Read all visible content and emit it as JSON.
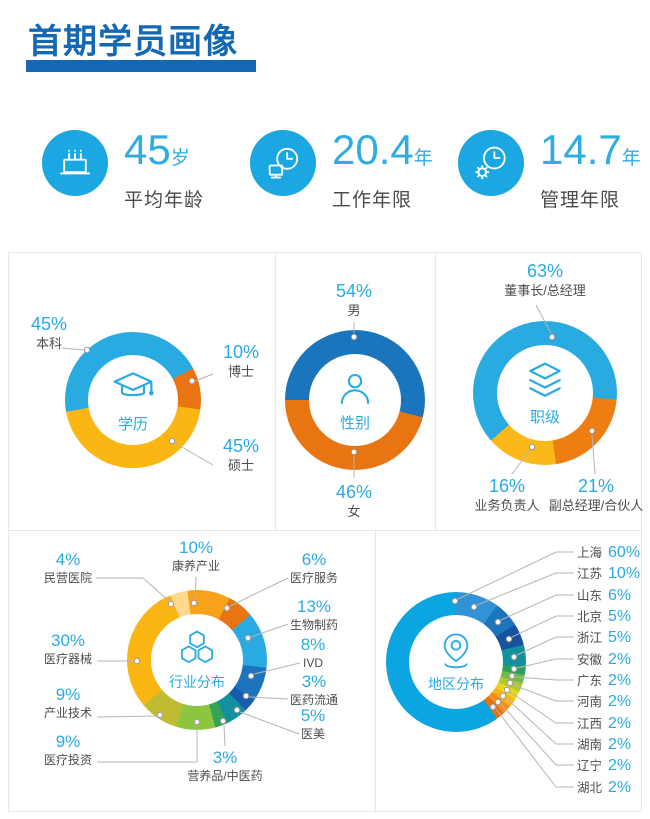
{
  "page": {
    "title": "首期学员画像"
  },
  "stats": [
    {
      "icon": "cake-icon",
      "value": "45",
      "unit": "岁",
      "label": "平均年龄"
    },
    {
      "icon": "clock-monitor-icon",
      "value": "20.4",
      "unit": "年",
      "label": "工作年限"
    },
    {
      "icon": "clock-gear-icon",
      "value": "14.7",
      "unit": "年",
      "label": "管理年限"
    }
  ],
  "colors": {
    "title_blue": "#1568B2",
    "accent_blue": "#29ABE2",
    "label_gray": "#4D4D4F",
    "leader_line_gray": "#B5B5B5",
    "divider_gray": "#E8E8E8"
  },
  "chart_data": [
    {
      "type": "pie",
      "variant": "donut",
      "title": "学历",
      "start_angle": 260,
      "legend_position": "callout",
      "segments": [
        {
          "label": "本科",
          "value": 45,
          "pct": "45%",
          "color": "#29ABE2"
        },
        {
          "label": "博士",
          "value": 10,
          "pct": "10%",
          "color": "#E87511"
        },
        {
          "label": "硕士",
          "value": 45,
          "pct": "45%",
          "color": "#FBB614"
        }
      ]
    },
    {
      "type": "pie",
      "variant": "donut",
      "title": "性别",
      "start_angle": 270,
      "legend_position": "callout",
      "segments": [
        {
          "label": "男",
          "value": 54,
          "pct": "54%",
          "color": "#1B75BC"
        },
        {
          "label": "女",
          "value": 46,
          "pct": "46%",
          "color": "#E87511"
        }
      ]
    },
    {
      "type": "pie",
      "variant": "donut",
      "title": "职级",
      "start_angle": 228.6,
      "legend_position": "callout",
      "segments": [
        {
          "label": "董事长/总经理",
          "value": 63,
          "pct": "63%",
          "color": "#29ABE2"
        },
        {
          "label": "副总经理/合伙人",
          "value": 21,
          "pct": "21%",
          "color": "#EE7D12"
        },
        {
          "label": "业务负责人",
          "value": 16,
          "pct": "16%",
          "color": "#FBB81A"
        }
      ]
    },
    {
      "type": "pie",
      "variant": "donut",
      "title": "行业分布",
      "start_angle": 352,
      "legend_position": "callout",
      "segments": [
        {
          "label": "康养产业",
          "value": 10,
          "pct": "10%",
          "color": "#F7A21B"
        },
        {
          "label": "医疗服务",
          "value": 6,
          "pct": "6%",
          "color": "#E87511"
        },
        {
          "label": "生物制药",
          "value": 13,
          "pct": "13%",
          "color": "#29ABE2"
        },
        {
          "label": "IVD",
          "value": 8,
          "pct": "8%",
          "color": "#1C75BC"
        },
        {
          "label": "医药流通",
          "value": 3,
          "pct": "3%",
          "color": "#1A5DAD"
        },
        {
          "label": "医美",
          "value": 5,
          "pct": "5%",
          "color": "#12909E"
        },
        {
          "label": "营养品/中医药",
          "value": 3,
          "pct": "3%",
          "color": "#33A457"
        },
        {
          "label": "医疗投资",
          "value": 9,
          "pct": "9%",
          "color": "#8CC63F"
        },
        {
          "label": "产业技术",
          "value": 9,
          "pct": "9%",
          "color": "#BFBC33"
        },
        {
          "label": "医疗器械",
          "value": 30,
          "pct": "30%",
          "color": "#FBB614"
        },
        {
          "label": "民营医院",
          "value": 4,
          "pct": "4%",
          "color": "#FFD98E"
        }
      ]
    },
    {
      "type": "pie",
      "variant": "donut",
      "title": "地区分布",
      "start_angle": 0,
      "legend_position": "right",
      "segments": [
        {
          "label": "江苏",
          "value": 10,
          "pct": "10%",
          "color": "#3193D5"
        },
        {
          "label": "山东",
          "value": 6,
          "pct": "6%",
          "color": "#1C75BC"
        },
        {
          "label": "北京",
          "value": 5,
          "pct": "5%",
          "color": "#17539F"
        },
        {
          "label": "浙江",
          "value": 5,
          "pct": "5%",
          "color": "#12909E"
        },
        {
          "label": "安徽",
          "value": 2,
          "pct": "2%",
          "color": "#2CA05A"
        },
        {
          "label": "广东",
          "value": 2,
          "pct": "2%",
          "color": "#6FBB4C"
        },
        {
          "label": "河南",
          "value": 2,
          "pct": "2%",
          "color": "#AFC933"
        },
        {
          "label": "江西",
          "value": 2,
          "pct": "2%",
          "color": "#EDD51F"
        },
        {
          "label": "湖南",
          "value": 2,
          "pct": "2%",
          "color": "#FBB616"
        },
        {
          "label": "辽宁",
          "value": 2,
          "pct": "2%",
          "color": "#F68E1E"
        },
        {
          "label": "湖北",
          "value": 2,
          "pct": "2%",
          "color": "#E8700E"
        },
        {
          "label": "上海",
          "value": 60,
          "pct": "60%",
          "color": "#0BA5E2"
        }
      ]
    }
  ]
}
